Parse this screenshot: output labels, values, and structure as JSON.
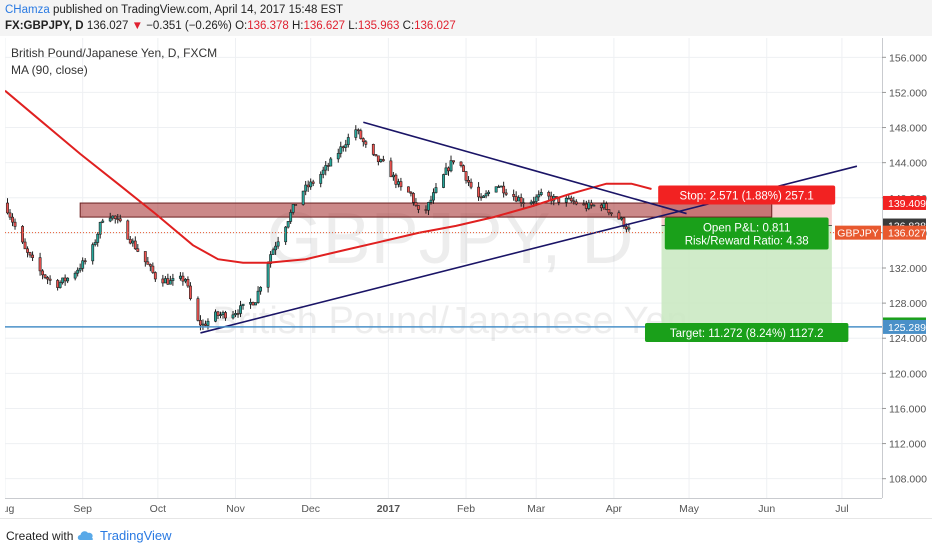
{
  "header": {
    "author": "CHamza",
    "published_text": "published on TradingView.com, April 14, 2017 15:48 EST",
    "symbol_line": "FX:GBPJPY, D",
    "last_price": "136.027",
    "change_arrow": "▼",
    "change_text": "−0.351 (−0.26%)",
    "o_label": "O:",
    "o_value": "136.378",
    "h_label": "H:",
    "h_value": "136.627",
    "l_label": "L:",
    "l_value": "135.963",
    "c_label": "C:",
    "c_value": "136.027"
  },
  "legend": {
    "title": "British Pound/Japanese Yen, D, FXCM",
    "indicator": "MA (90, close)"
  },
  "watermark": {
    "symbol": "GBPJPY, D",
    "name": "British Pound/Japanese Yen"
  },
  "footer": {
    "created_with": "Created with",
    "brand": "TradingView"
  },
  "colors": {
    "candle_up": "#26a69a",
    "candle_down": "#ef5350",
    "candle_border": "#1f1f1f",
    "ma_line": "#e02020",
    "trend_line": "#1a1466",
    "horizontal_line": "#4a90c8",
    "zone_fill": "#a83a3a",
    "stop_fill": "#f7c6c6",
    "target_fill": "#c8e8c0",
    "stop_label": "#f22222",
    "target_label": "#1aa01a",
    "pnl_label": "#1aa01a",
    "gbpjpy_tag": "#e8592f"
  },
  "chart_data": {
    "type": "candlestick",
    "title": "British Pound/Japanese Yen, D, FXCM",
    "symbol": "GBPJPY",
    "timeframe": "D",
    "y_axis": {
      "range": [
        105.8,
        158.2
      ],
      "ticks": [
        "108.000",
        "112.000",
        "116.000",
        "120.000",
        "124.000",
        "128.000",
        "132.000",
        "136.000",
        "140.000",
        "144.000",
        "148.000",
        "152.000",
        "156.000"
      ]
    },
    "x_axis": {
      "range_day_index": [
        0,
        350
      ],
      "ticks": [
        {
          "label": "Aug",
          "day": 0
        },
        {
          "label": "Sep",
          "day": 31
        },
        {
          "label": "Oct",
          "day": 61
        },
        {
          "label": "Nov",
          "day": 92
        },
        {
          "label": "Dec",
          "day": 122
        },
        {
          "label": "2017",
          "day": 153
        },
        {
          "label": "Feb",
          "day": 184
        },
        {
          "label": "Mar",
          "day": 212
        },
        {
          "label": "Apr",
          "day": 243
        },
        {
          "label": "May",
          "day": 273
        },
        {
          "label": "Jun",
          "day": 304
        },
        {
          "label": "Jul",
          "day": 334
        }
      ]
    },
    "price_anchors": [
      {
        "day": 0,
        "close": 139.4
      },
      {
        "day": 8,
        "close": 134.0
      },
      {
        "day": 14,
        "close": 131.6
      },
      {
        "day": 20,
        "close": 130.0
      },
      {
        "day": 26,
        "close": 131.0
      },
      {
        "day": 34,
        "close": 133.4
      },
      {
        "day": 40,
        "close": 138.6
      },
      {
        "day": 46,
        "close": 137.0
      },
      {
        "day": 53,
        "close": 134.0
      },
      {
        "day": 60,
        "close": 131.0
      },
      {
        "day": 66,
        "close": 130.4
      },
      {
        "day": 72,
        "close": 130.8
      },
      {
        "day": 76,
        "close": 126.0
      },
      {
        "day": 79,
        "close": 125.5
      },
      {
        "day": 84,
        "close": 126.6
      },
      {
        "day": 90,
        "close": 126.8
      },
      {
        "day": 96,
        "close": 127.6
      },
      {
        "day": 100,
        "close": 128.4
      },
      {
        "day": 106,
        "close": 133.6
      },
      {
        "day": 112,
        "close": 137.0
      },
      {
        "day": 118,
        "close": 140.6
      },
      {
        "day": 124,
        "close": 142.0
      },
      {
        "day": 130,
        "close": 144.0
      },
      {
        "day": 136,
        "close": 146.4
      },
      {
        "day": 140,
        "close": 147.8
      },
      {
        "day": 146,
        "close": 144.8
      },
      {
        "day": 152,
        "close": 143.6
      },
      {
        "day": 158,
        "close": 141.0
      },
      {
        "day": 162,
        "close": 140.4
      },
      {
        "day": 166,
        "close": 137.6
      },
      {
        "day": 172,
        "close": 140.8
      },
      {
        "day": 176,
        "close": 143.0
      },
      {
        "day": 180,
        "close": 144.8
      },
      {
        "day": 186,
        "close": 141.2
      },
      {
        "day": 190,
        "close": 139.6
      },
      {
        "day": 196,
        "close": 141.6
      },
      {
        "day": 202,
        "close": 140.4
      },
      {
        "day": 208,
        "close": 139.4
      },
      {
        "day": 214,
        "close": 140.2
      },
      {
        "day": 220,
        "close": 139.8
      },
      {
        "day": 226,
        "close": 139.6
      },
      {
        "day": 232,
        "close": 139.0
      },
      {
        "day": 238,
        "close": 139.2
      },
      {
        "day": 242,
        "close": 138.4
      },
      {
        "day": 246,
        "close": 137.4
      },
      {
        "day": 250,
        "close": 136.0
      }
    ],
    "ma_90": [
      {
        "day": 0,
        "value": 152.2
      },
      {
        "day": 15,
        "value": 148.6
      },
      {
        "day": 30,
        "value": 145.0
      },
      {
        "day": 45,
        "value": 141.6
      },
      {
        "day": 60,
        "value": 138.2
      },
      {
        "day": 75,
        "value": 134.6
      },
      {
        "day": 85,
        "value": 133.0
      },
      {
        "day": 95,
        "value": 132.6
      },
      {
        "day": 105,
        "value": 132.6
      },
      {
        "day": 120,
        "value": 133.0
      },
      {
        "day": 135,
        "value": 134.0
      },
      {
        "day": 150,
        "value": 135.0
      },
      {
        "day": 165,
        "value": 136.0
      },
      {
        "day": 180,
        "value": 136.8
      },
      {
        "day": 195,
        "value": 137.8
      },
      {
        "day": 210,
        "value": 139.0
      },
      {
        "day": 225,
        "value": 140.4
      },
      {
        "day": 240,
        "value": 141.6
      },
      {
        "day": 250,
        "value": 141.6
      },
      {
        "day": 258,
        "value": 141.0
      }
    ],
    "trendlines": [
      {
        "from": {
          "day": 143,
          "value": 148.6
        },
        "to": {
          "day": 272,
          "value": 138.2
        }
      },
      {
        "from": {
          "day": 78,
          "value": 124.6
        },
        "to": {
          "day": 340,
          "value": 143.6
        }
      }
    ],
    "resistance_zone": {
      "from_day": 30,
      "to_day": 306,
      "top": 139.4,
      "bottom": 137.8
    },
    "horizontal_line": {
      "value": 125.289
    },
    "position": {
      "entry": 136.838,
      "stop": 139.409,
      "target": 125.566,
      "from_day": 262,
      "to_day": 330,
      "stop_label": "Stop: 2.571 (1.88%) 257.1",
      "target_label": "Target: 11.272 (8.24%) 1127.2",
      "pnl_label": "Open P&L: 0.811",
      "rr_label": "Risk/Reward Ratio: 4.38"
    },
    "price_tags": [
      {
        "label": "139.409",
        "value": 139.409,
        "color": "#f22222"
      },
      {
        "label": "136.838",
        "value": 136.838,
        "color": "#3a3a3a"
      },
      {
        "label": "136.027",
        "value": 136.027,
        "color": "#e8592f"
      },
      {
        "label": "125.566",
        "value": 125.566,
        "color": "#1aa01a"
      },
      {
        "label": "125.289",
        "value": 125.289,
        "color": "#4a90c8"
      }
    ],
    "symbol_tag": {
      "label": "GBPJPY",
      "value": 136.027
    }
  }
}
